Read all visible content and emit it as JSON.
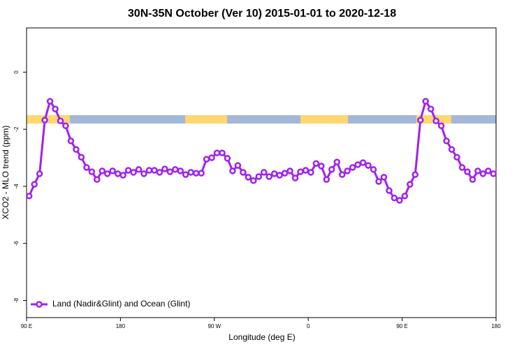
{
  "chart_data": {
    "type": "line",
    "title": "30N-35N October (Ver 10)   2015-01-01 to 2020-12-18",
    "xlabel": "Longitude (deg E)",
    "ylabel": "XCO2 - MLO trend (ppm)",
    "xlim": [
      90,
      540
    ],
    "ylim": [
      -8.6,
      1.55
    ],
    "xticks": [
      {
        "value": 90,
        "label": "90 E"
      },
      180,
      {
        "value": 270,
        "label": "90 W"
      },
      {
        "value": 360,
        "label": "0"
      },
      {
        "value": 450,
        "label": "90 E"
      },
      {
        "value": 540,
        "label": "180"
      }
    ],
    "yticks": [
      0,
      -2,
      -4,
      -6,
      -8
    ],
    "legend": "bottom-left",
    "series": [
      {
        "name": "Land (Nadir&Glint) and Ocean (Glint)",
        "color": "#a020f0",
        "x": [
          92.5,
          97.5,
          102.5,
          107.5,
          112.5,
          117.5,
          122.5,
          127.5,
          132.5,
          137.5,
          142.5,
          147.5,
          152.5,
          157.5,
          162.5,
          167.5,
          172.5,
          177.5,
          182.5,
          187.5,
          192.5,
          197.5,
          202.5,
          207.5,
          212.5,
          217.5,
          222.5,
          227.5,
          232.5,
          237.5,
          242.5,
          247.5,
          252.5,
          257.5,
          262.5,
          267.5,
          272.5,
          277.5,
          282.5,
          287.5,
          292.5,
          297.5,
          302.5,
          307.5,
          312.5,
          317.5,
          322.5,
          327.5,
          332.5,
          337.5,
          342.5,
          347.5,
          352.5,
          357.5,
          362.5,
          367.5,
          372.5,
          377.5,
          382.5,
          387.5,
          392.5,
          397.5,
          402.5,
          407.5,
          412.5,
          417.5,
          422.5,
          427.5,
          432.5,
          437.5,
          442.5,
          447.5,
          452.5,
          457.5,
          462.5,
          467.5,
          472.5,
          477.5,
          482.5,
          487.5,
          492.5,
          497.5,
          502.5,
          507.5,
          512.5,
          517.5,
          522.5,
          527.5,
          532.5,
          537.5
        ],
        "values": [
          -4.34,
          -3.93,
          -3.56,
          -1.68,
          -1.02,
          -1.29,
          -1.71,
          -1.88,
          -2.41,
          -2.71,
          -2.98,
          -3.34,
          -3.49,
          -3.76,
          -3.46,
          -3.56,
          -3.46,
          -3.56,
          -3.61,
          -3.44,
          -3.51,
          -3.41,
          -3.56,
          -3.44,
          -3.44,
          -3.51,
          -3.39,
          -3.49,
          -3.41,
          -3.46,
          -3.59,
          -3.51,
          -3.54,
          -3.54,
          -3.05,
          -3.0,
          -2.83,
          -2.83,
          -3.02,
          -3.46,
          -3.27,
          -3.51,
          -3.68,
          -3.8,
          -3.66,
          -3.51,
          -3.66,
          -3.56,
          -3.61,
          -3.54,
          -3.46,
          -3.71,
          -3.49,
          -3.44,
          -3.51,
          -3.2,
          -3.29,
          -3.76,
          -3.41,
          -3.15,
          -3.59,
          -3.46,
          -3.34,
          -3.24,
          -3.17,
          -3.27,
          -3.41,
          -3.83,
          -3.68,
          -4.15,
          -4.41,
          -4.49,
          -4.34,
          -3.93,
          -3.59,
          -1.68,
          -1.02,
          -1.29,
          -1.71,
          -1.88,
          -2.41,
          -2.71,
          -2.98,
          -3.34,
          -3.49,
          -3.76,
          -3.46,
          -3.56,
          -3.46,
          -3.56
        ]
      }
    ]
  }
}
